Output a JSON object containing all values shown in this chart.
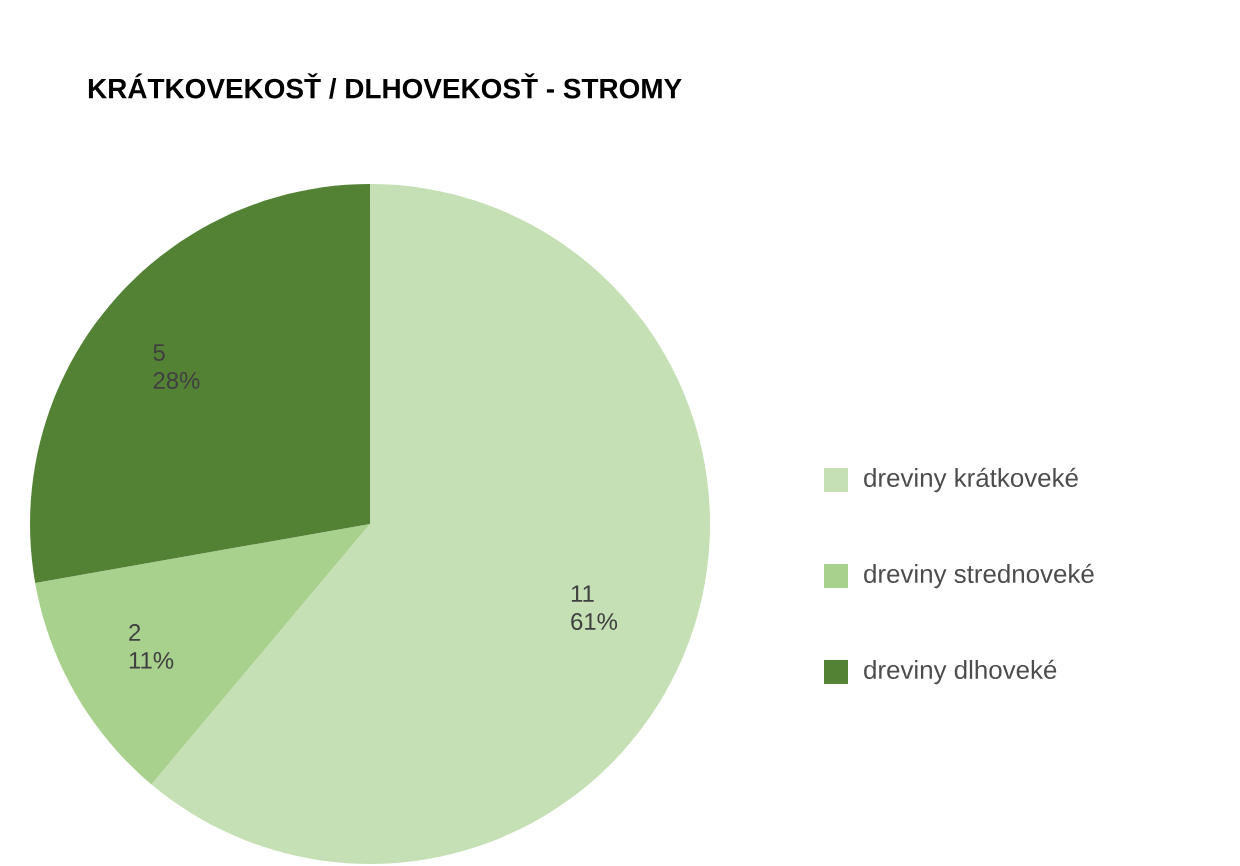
{
  "chart_data": {
    "type": "pie",
    "title": "KRÁTKOVEKOSŤ / DLHOVEKOSŤ - STROMY",
    "categories": [
      "dreviny krátkoveké",
      "dreviny strednoveké",
      "dreviny dlhoveké"
    ],
    "values": [
      11,
      2,
      5
    ],
    "value_labels": [
      "11 61%",
      "2 11%",
      "5 28%"
    ],
    "colors": [
      "#c5e0b4",
      "#a9d18e",
      "#548235"
    ],
    "legend": "right"
  }
}
